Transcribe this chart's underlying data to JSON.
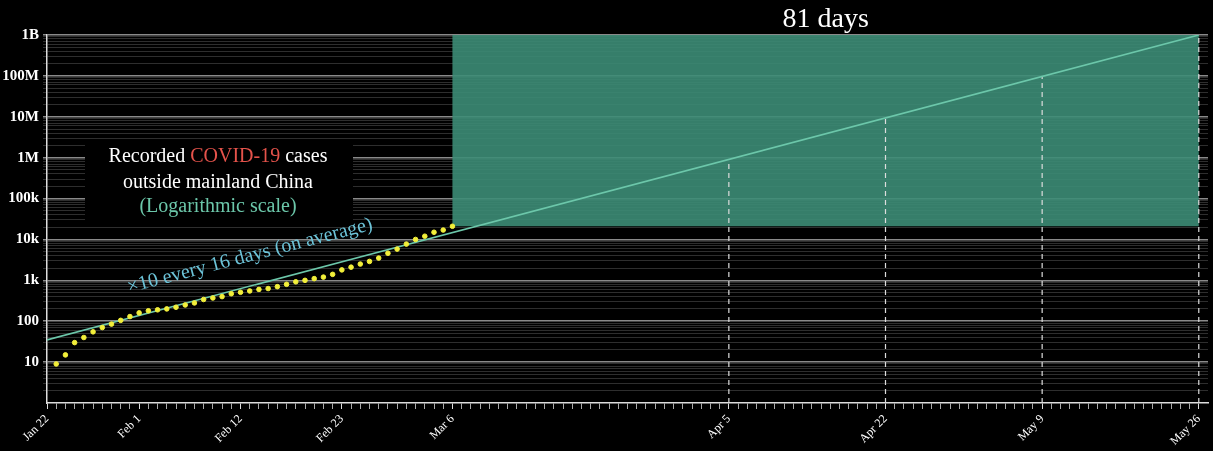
{
  "chart_data": {
    "type": "scatter",
    "marker": "circle",
    "grid": "y",
    "legend": false,
    "log": "y",
    "ylim": [
      1,
      1000000000
    ],
    "yticks": [
      {
        "value": 2,
        "label": null
      },
      {
        "value": 3,
        "label": null
      },
      {
        "value": 4,
        "label": null
      },
      {
        "value": 5,
        "label": null
      },
      {
        "value": 6,
        "label": null
      },
      {
        "value": 7,
        "label": null
      },
      {
        "value": 8,
        "label": null
      },
      {
        "value": 9,
        "label": null
      },
      10,
      {
        "value": 20,
        "label": null
      },
      {
        "value": 30,
        "label": null
      },
      {
        "value": 40,
        "label": null
      },
      {
        "value": 50,
        "label": null
      },
      {
        "value": 60,
        "label": null
      },
      {
        "value": 70,
        "label": null
      },
      {
        "value": 80,
        "label": null
      },
      {
        "value": 90,
        "label": null
      },
      100,
      {
        "value": 200,
        "label": null
      },
      {
        "value": 300,
        "label": null
      },
      {
        "value": 400,
        "label": null
      },
      {
        "value": 500,
        "label": null
      },
      {
        "value": 600,
        "label": null
      },
      {
        "value": 700,
        "label": null
      },
      {
        "value": 800,
        "label": null
      },
      {
        "value": 900,
        "label": null
      },
      {
        "value": 1000,
        "label": "1k"
      },
      {
        "value": 2000,
        "label": null
      },
      {
        "value": 3000,
        "label": null
      },
      {
        "value": 4000,
        "label": null
      },
      {
        "value": 5000,
        "label": null
      },
      {
        "value": 6000,
        "label": null
      },
      {
        "value": 7000,
        "label": null
      },
      {
        "value": 8000,
        "label": null
      },
      {
        "value": 9000,
        "label": null
      },
      {
        "value": 10000,
        "label": "10k"
      },
      {
        "value": 20000,
        "label": null
      },
      {
        "value": 30000,
        "label": null
      },
      {
        "value": 40000,
        "label": null
      },
      {
        "value": 50000,
        "label": null
      },
      {
        "value": 60000,
        "label": null
      },
      {
        "value": 70000,
        "label": null
      },
      {
        "value": 80000,
        "label": null
      },
      {
        "value": 90000,
        "label": null
      },
      {
        "value": 100000,
        "label": "100k"
      },
      {
        "value": 200000,
        "label": null
      },
      {
        "value": 300000,
        "label": null
      },
      {
        "value": 400000,
        "label": null
      },
      {
        "value": 500000,
        "label": null
      },
      {
        "value": 600000,
        "label": null
      },
      {
        "value": 700000,
        "label": null
      },
      {
        "value": 800000,
        "label": null
      },
      {
        "value": 900000,
        "label": null
      },
      {
        "value": 1000000,
        "label": "1M"
      },
      {
        "value": 2000000,
        "label": null
      },
      {
        "value": 3000000,
        "label": null
      },
      {
        "value": 4000000,
        "label": null
      },
      {
        "value": 5000000,
        "label": null
      },
      {
        "value": 6000000,
        "label": null
      },
      {
        "value": 7000000,
        "label": null
      },
      {
        "value": 8000000,
        "label": null
      },
      {
        "value": 9000000,
        "label": null
      },
      {
        "value": 10000000,
        "label": "10M"
      },
      {
        "value": 20000000,
        "label": null
      },
      {
        "value": 30000000,
        "label": null
      },
      {
        "value": 40000000,
        "label": null
      },
      {
        "value": 50000000,
        "label": null
      },
      {
        "value": 60000000,
        "label": null
      },
      {
        "value": 70000000,
        "label": null
      },
      {
        "value": 80000000,
        "label": null
      },
      {
        "value": 90000000,
        "label": null
      },
      {
        "value": 100000000,
        "label": "100M"
      },
      {
        "value": 200000000,
        "label": null
      },
      {
        "value": 300000000,
        "label": null
      },
      {
        "value": 400000000,
        "label": null
      },
      {
        "value": 500000000,
        "label": null
      },
      {
        "value": 600000000,
        "label": null
      },
      {
        "value": 700000000,
        "label": null
      },
      {
        "value": 800000000,
        "label": null
      },
      {
        "value": 900000000,
        "label": null
      },
      {
        "value": 1000000000,
        "label": "1B"
      }
    ],
    "xlim": [
      "--01-22",
      "--05-27"
    ],
    "xticks": [
      {
        "value": "--01-22",
        "label": "Jan 22"
      },
      {
        "value": "--01-23",
        "label": null
      },
      {
        "value": "--01-24",
        "label": null
      },
      {
        "value": "--01-25",
        "label": null
      },
      {
        "value": "--01-26",
        "label": null
      },
      {
        "value": "--01-27",
        "label": null
      },
      {
        "value": "--01-28",
        "label": null
      },
      {
        "value": "--01-29",
        "label": null
      },
      {
        "value": "--01-30",
        "label": null
      },
      {
        "value": "--01-31",
        "label": null
      },
      {
        "value": "--02-01",
        "label": "Feb 1"
      },
      {
        "value": "--02-02",
        "label": null
      },
      {
        "value": "--02-03",
        "label": null
      },
      {
        "value": "--02-04",
        "label": null
      },
      {
        "value": "--02-05",
        "label": null
      },
      {
        "value": "--02-06",
        "label": null
      },
      {
        "value": "--02-07",
        "label": null
      },
      {
        "value": "--02-08",
        "label": null
      },
      {
        "value": "--02-09",
        "label": null
      },
      {
        "value": "--02-10",
        "label": null
      },
      {
        "value": "--02-11",
        "label": null
      },
      {
        "value": "--02-12",
        "label": "Feb 12"
      },
      {
        "value": "--02-13",
        "label": null
      },
      {
        "value": "--02-14",
        "label": null
      },
      {
        "value": "--02-15",
        "label": null
      },
      {
        "value": "--02-16",
        "label": null
      },
      {
        "value": "--02-17",
        "label": null
      },
      {
        "value": "--02-18",
        "label": null
      },
      {
        "value": "--02-19",
        "label": null
      },
      {
        "value": "--02-20",
        "label": null
      },
      {
        "value": "--02-21",
        "label": null
      },
      {
        "value": "--02-22",
        "label": null
      },
      {
        "value": "--02-23",
        "label": "Feb 23"
      },
      {
        "value": "--02-24",
        "label": null
      },
      {
        "value": "--02-25",
        "label": null
      },
      {
        "value": "--02-26",
        "label": null
      },
      {
        "value": "--02-27",
        "label": null
      },
      {
        "value": "--02-28",
        "label": null
      },
      {
        "value": "--02-29",
        "label": null
      },
      {
        "value": "--03-01",
        "label": null
      },
      {
        "value": "--03-02",
        "label": null
      },
      {
        "value": "--03-03",
        "label": null
      },
      {
        "value": "--03-04",
        "label": null
      },
      {
        "value": "--03-05",
        "label": null
      },
      {
        "value": "--03-06",
        "label": "Mar 6"
      },
      {
        "value": "--03-07",
        "label": null
      },
      {
        "value": "--03-08",
        "label": null
      },
      {
        "value": "--03-09",
        "label": null
      },
      {
        "value": "--03-10",
        "label": null
      },
      {
        "value": "--03-11",
        "label": null
      },
      {
        "value": "--03-12",
        "label": null
      },
      {
        "value": "--03-13",
        "label": null
      },
      {
        "value": "--03-14",
        "label": null
      },
      {
        "value": "--03-15",
        "label": null
      },
      {
        "value": "--03-16",
        "label": null
      },
      {
        "value": "--03-17",
        "label": null
      },
      {
        "value": "--03-18",
        "label": null
      },
      {
        "value": "--03-19",
        "label": null
      },
      {
        "value": "--03-20",
        "label": null
      },
      {
        "value": "--03-21",
        "label": null
      },
      {
        "value": "--03-22",
        "label": null
      },
      {
        "value": "--03-23",
        "label": null
      },
      {
        "value": "--03-24",
        "label": null
      },
      {
        "value": "--03-25",
        "label": null
      },
      {
        "value": "--03-26",
        "label": null
      },
      {
        "value": "--03-27",
        "label": null
      },
      {
        "value": "--03-28",
        "label": null
      },
      {
        "value": "--03-29",
        "label": null
      },
      {
        "value": "--03-30",
        "label": null
      },
      {
        "value": "--03-31",
        "label": null
      },
      {
        "value": "--04-01",
        "label": null
      },
      {
        "value": "--04-02",
        "label": null
      },
      {
        "value": "--04-03",
        "label": null
      },
      {
        "value": "--04-04",
        "label": null
      },
      {
        "value": "--04-05",
        "label": "Apr 5"
      },
      {
        "value": "--04-06",
        "label": null
      },
      {
        "value": "--04-07",
        "label": null
      },
      {
        "value": "--04-08",
        "label": null
      },
      {
        "value": "--04-09",
        "label": null
      },
      {
        "value": "--04-10",
        "label": null
      },
      {
        "value": "--04-11",
        "label": null
      },
      {
        "value": "--04-12",
        "label": null
      },
      {
        "value": "--04-13",
        "label": null
      },
      {
        "value": "--04-14",
        "label": null
      },
      {
        "value": "--04-15",
        "label": null
      },
      {
        "value": "--04-16",
        "label": null
      },
      {
        "value": "--04-17",
        "label": null
      },
      {
        "value": "--04-18",
        "label": null
      },
      {
        "value": "--04-19",
        "label": null
      },
      {
        "value": "--04-20",
        "label": null
      },
      {
        "value": "--04-21",
        "label": null
      },
      {
        "value": "--04-22",
        "label": "Apr 22"
      },
      {
        "value": "--04-23",
        "label": null
      },
      {
        "value": "--04-24",
        "label": null
      },
      {
        "value": "--04-25",
        "label": null
      },
      {
        "value": "--04-26",
        "label": null
      },
      {
        "value": "--04-27",
        "label": null
      },
      {
        "value": "--04-28",
        "label": null
      },
      {
        "value": "--04-29",
        "label": null
      },
      {
        "value": "--04-30",
        "label": null
      },
      {
        "value": "--05-01",
        "label": null
      },
      {
        "value": "--05-02",
        "label": null
      },
      {
        "value": "--05-03",
        "label": null
      },
      {
        "value": "--05-04",
        "label": null
      },
      {
        "value": "--05-05",
        "label": null
      },
      {
        "value": "--05-06",
        "label": null
      },
      {
        "value": "--05-07",
        "label": null
      },
      {
        "value": "--05-08",
        "label": null
      },
      {
        "value": "--05-09",
        "label": "May 9"
      },
      {
        "value": "--05-10",
        "label": null
      },
      {
        "value": "--05-11",
        "label": null
      },
      {
        "value": "--05-12",
        "label": null
      },
      {
        "value": "--05-13",
        "label": null
      },
      {
        "value": "--05-14",
        "label": null
      },
      {
        "value": "--05-15",
        "label": null
      },
      {
        "value": "--05-16",
        "label": null
      },
      {
        "value": "--05-17",
        "label": null
      },
      {
        "value": "--05-18",
        "label": null
      },
      {
        "value": "--05-19",
        "label": null
      },
      {
        "value": "--05-20",
        "label": null
      },
      {
        "value": "--05-21",
        "label": null
      },
      {
        "value": "--05-22",
        "label": null
      },
      {
        "value": "--05-23",
        "label": null
      },
      {
        "value": "--05-24",
        "label": null
      },
      {
        "value": "--05-25",
        "label": null
      },
      {
        "value": "--05-26",
        "label": "May 26"
      }
    ],
    "series": [
      {
        "color": "#f2ef3a",
        "x": [
          "--01-23",
          "--01-24",
          "--01-25",
          "--01-26",
          "--01-27",
          "--01-28",
          "--01-29",
          "--01-30",
          "--01-31",
          "--02-01",
          "--02-02",
          "--02-03",
          "--02-04",
          "--02-05",
          "--02-06",
          "--02-07",
          "--02-08",
          "--02-09",
          "--02-10",
          "--02-11",
          "--02-12",
          "--02-13",
          "--02-14",
          "--02-15",
          "--02-16",
          "--02-17",
          "--02-18",
          "--02-19",
          "--02-20",
          "--02-21",
          "--02-22",
          "--02-23",
          "--02-24",
          "--02-25",
          "--02-26",
          "--02-27",
          "--02-28",
          "--02-29",
          "--03-01",
          "--03-02",
          "--03-03",
          "--03-04",
          "--03-05",
          "--03-06"
        ],
        "values": [
          9,
          15,
          30,
          40,
          55,
          70,
          85,
          105,
          130,
          160,
          180,
          190,
          200,
          220,
          250,
          280,
          340,
          370,
          400,
          470,
          510,
          550,
          600,
          630,
          700,
          800,
          920,
          1000,
          1100,
          1200,
          1400,
          1800,
          2100,
          2500,
          2900,
          3500,
          4600,
          5800,
          7700,
          10000,
          12000,
          15000,
          17000,
          21000
        ]
      },
      {
        "type": "line",
        "marker": "none",
        "color": "#6cc7aa",
        "line_style": "solid",
        "x": [
          "--01-22",
          "--05-26"
        ],
        "values": [
          35,
          1000000000
        ]
      }
    ],
    "bands": [
      {
        "axis": "x",
        "from": "--03-06",
        "to": "--05-26",
        "label": "81 days",
        "color": "#3c8c76"
      }
    ],
    "ref_lines": [
      {
        "axis": "x",
        "value": "--04-05",
        "line_style": "dashed"
      },
      {
        "axis": "x",
        "value": "--04-22",
        "line_style": "dashed"
      },
      {
        "axis": "x",
        "value": "--05-09",
        "line_style": "dashed"
      },
      {
        "axis": "x",
        "value": "--05-26",
        "line_style": "dashed"
      }
    ],
    "annotations": [
      "Recorded COVID-19 cases",
      "outside mainland China",
      "(Logarithmic scale)",
      "×10 every 16 days (on average)"
    ]
  }
}
